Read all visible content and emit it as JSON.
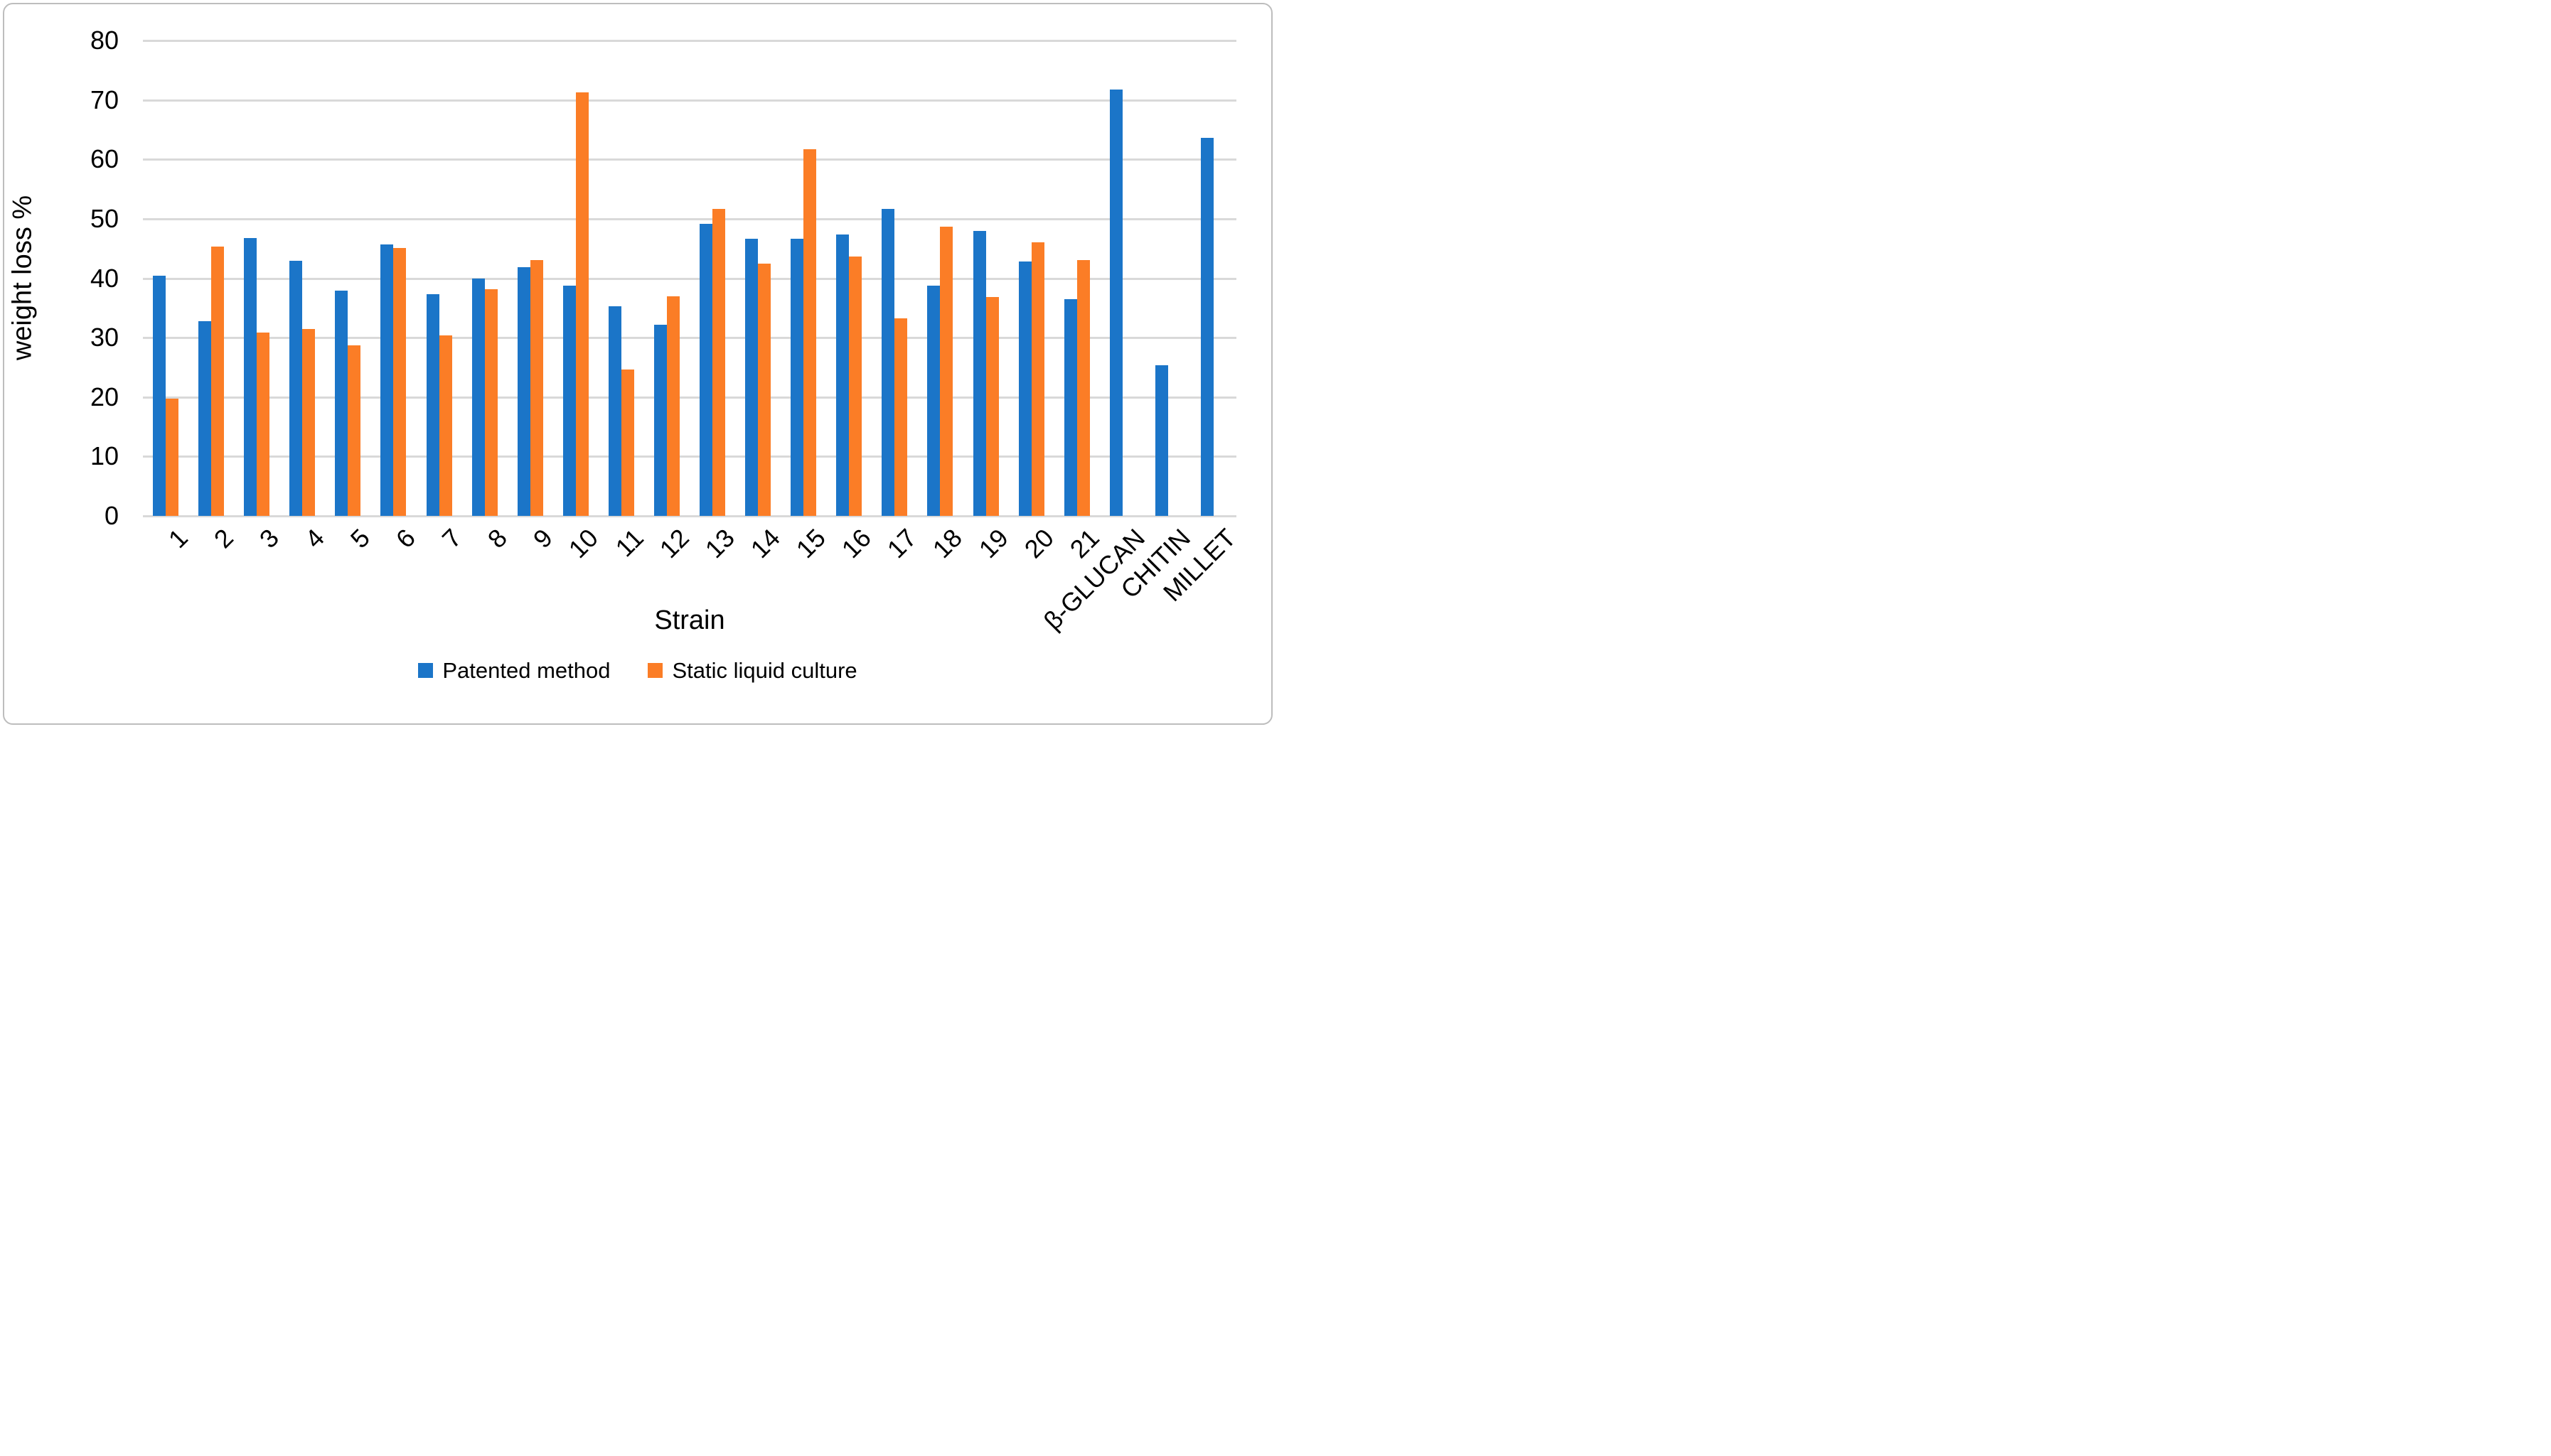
{
  "figure": {
    "frame_border_color": "#bdbdbd",
    "background_color": "#ffffff"
  },
  "chart_data": {
    "type": "bar",
    "title": "",
    "xlabel": "Strain",
    "ylabel": "weight loss %",
    "ylim": [
      0,
      80
    ],
    "yticks": [
      0,
      10,
      20,
      30,
      40,
      50,
      60,
      70,
      80
    ],
    "grid": true,
    "gridline_color": "#d9d9d9",
    "legend_position": "bottom",
    "categories": [
      "1",
      "2",
      "3",
      "4",
      "5",
      "6",
      "7",
      "8",
      "9",
      "10",
      "11",
      "12",
      "13",
      "14",
      "15",
      "16",
      "17",
      "18",
      "19",
      "20",
      "21",
      "β-GLUCAN",
      "CHITIN",
      "MILLET"
    ],
    "series": [
      {
        "name": "Patented method",
        "color": "#1b75c8",
        "values": [
          40.4,
          32.8,
          46.8,
          42.9,
          37.9,
          45.7,
          37.3,
          40.0,
          41.9,
          38.8,
          35.3,
          32.2,
          49.2,
          46.6,
          46.6,
          47.4,
          51.7,
          38.7,
          47.9,
          42.8,
          36.5,
          71.8,
          25.4,
          63.6
        ]
      },
      {
        "name": "Static liquid culture",
        "color": "#fb7d26",
        "values": [
          19.7,
          45.3,
          30.8,
          31.5,
          28.7,
          45.1,
          30.4,
          38.1,
          43.1,
          71.3,
          24.6,
          36.9,
          51.7,
          42.5,
          61.7,
          43.6,
          33.2,
          48.7,
          36.8,
          46.0,
          43.1,
          null,
          null,
          null
        ]
      }
    ]
  }
}
